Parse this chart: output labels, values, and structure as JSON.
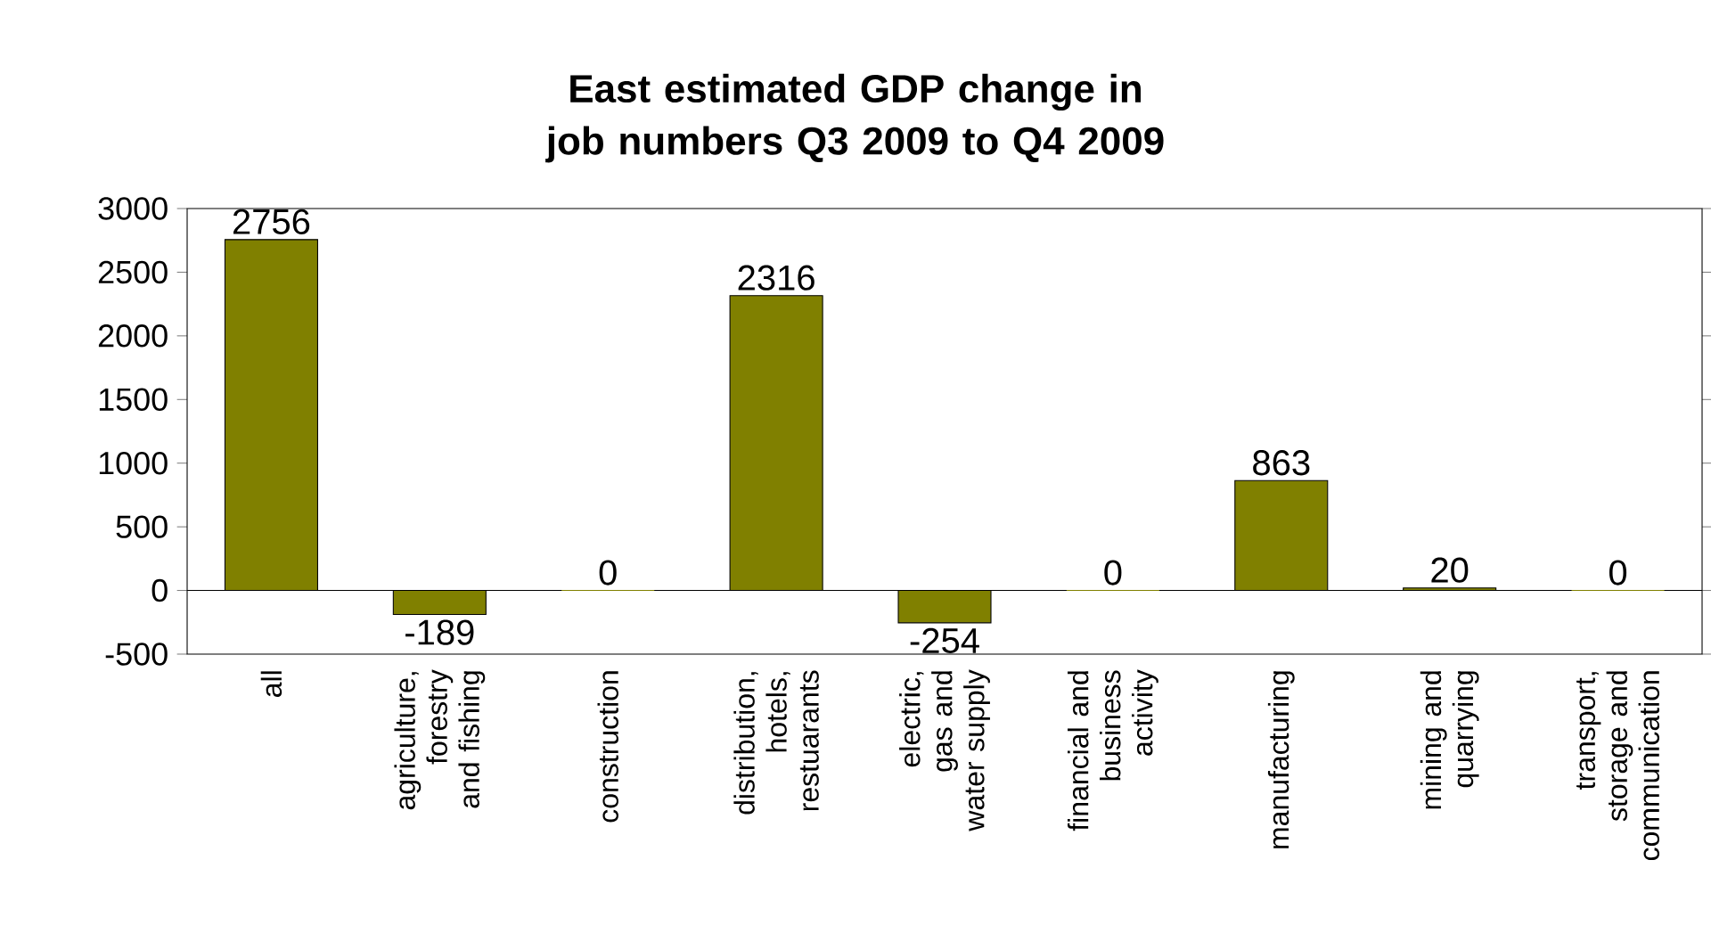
{
  "chart_data": {
    "type": "bar",
    "title": "East estimated GDP change in job numbers Q3 2009 to Q4 2009",
    "categories": [
      "all",
      "agriculture, forestry and fishing",
      "construction",
      "distribution, hotels, restuarants",
      "electric, gas and water supply",
      "financial and business activity",
      "manufacturing",
      "mining and quarrying",
      "transport, storage and communication"
    ],
    "values": [
      2756,
      -189,
      0,
      2316,
      -254,
      0,
      863,
      20,
      0
    ],
    "color": "#808000",
    "ylim": [
      -500,
      3000
    ],
    "yticks": [
      -500,
      0,
      500,
      1000,
      1500,
      2000,
      2500,
      3000
    ],
    "data_labels": true
  }
}
